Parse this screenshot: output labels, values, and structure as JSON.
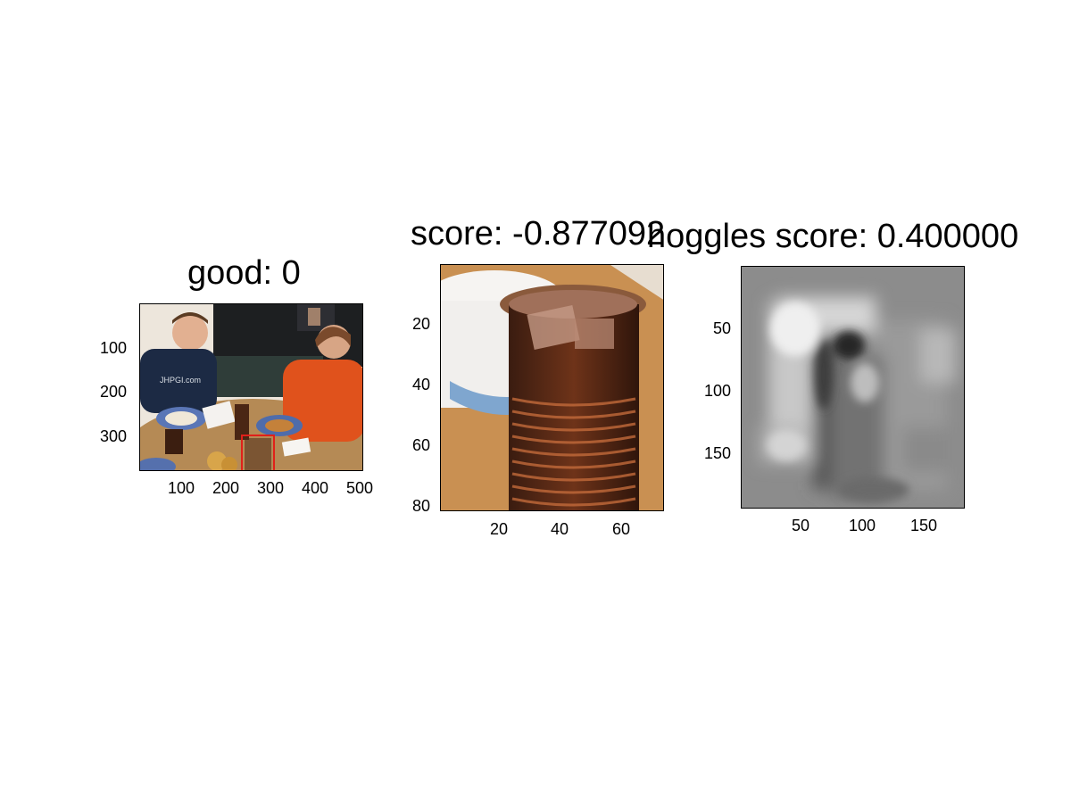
{
  "panels": [
    {
      "title": "good: 0",
      "image_description": "photo",
      "xticks": [
        "100",
        "200",
        "300",
        "400",
        "500"
      ],
      "yticks": [
        "100",
        "200",
        "300"
      ],
      "colors": {
        "box": "#e0201a"
      }
    },
    {
      "title": "score: -0.877092",
      "image_description": "photo",
      "xticks": [
        "20",
        "40",
        "60"
      ],
      "yticks": [
        "20",
        "40",
        "60",
        "80"
      ]
    },
    {
      "title": "hoggles score: 0.400000",
      "image_description": "grayscale feature visualization",
      "xticks": [
        "50",
        "100",
        "150"
      ],
      "yticks": [
        "50",
        "100",
        "150"
      ]
    }
  ]
}
